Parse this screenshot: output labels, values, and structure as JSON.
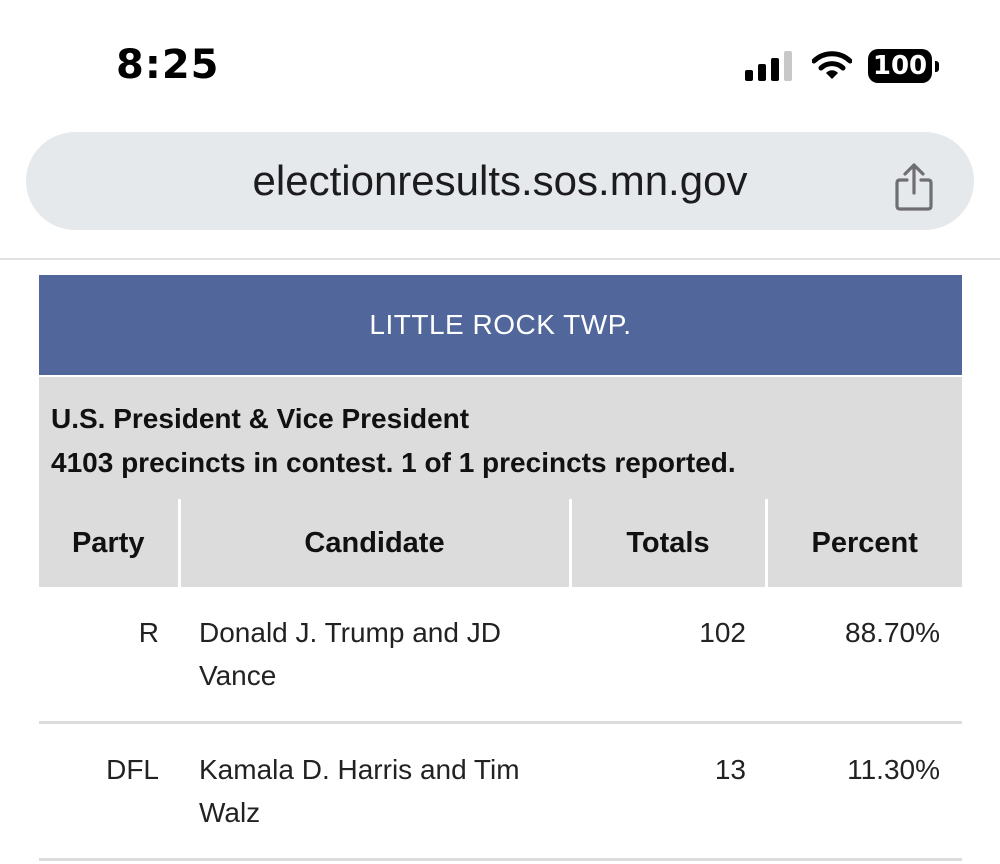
{
  "status_bar": {
    "time": "8:25",
    "battery_level": "100",
    "signal_bars": 3,
    "signal_bars_total": 4,
    "icons": [
      "signal-icon",
      "wifi-icon",
      "battery-icon"
    ]
  },
  "browser": {
    "url": "electionresults.sos.mn.gov",
    "share_icon": "share-icon"
  },
  "results": {
    "location": "LITTLE ROCK TWP.",
    "contest_name": "U.S. President & Vice President",
    "contest_status": "4103 precincts in contest. 1 of 1 precincts reported.",
    "columns": [
      "Party",
      "Candidate",
      "Totals",
      "Percent"
    ],
    "rows": [
      {
        "party": "R",
        "candidate": "Donald J. Trump and JD Vance",
        "totals": "102",
        "percent": "88.70%"
      },
      {
        "party": "DFL",
        "candidate": "Kamala D. Harris and Tim Walz",
        "totals": "13",
        "percent": "11.30%"
      }
    ]
  },
  "colors": {
    "header_bg": "#51669a",
    "table_header_bg": "#dcdcdc",
    "url_bar_bg": "#e6e9ec"
  }
}
